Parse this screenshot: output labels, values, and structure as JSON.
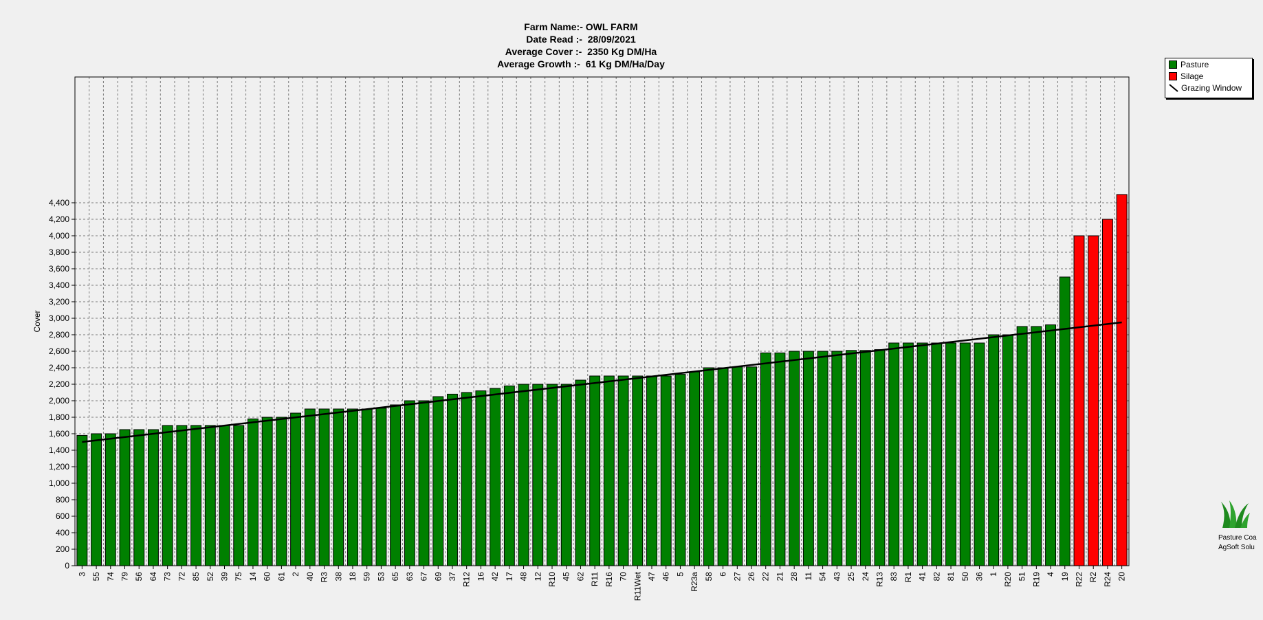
{
  "titles": {
    "farm": "Farm Name:- OWL FARM",
    "date": "Date Read :-  28/09/2021",
    "cover": "Average Cover :-  2350 Kg DM/Ha",
    "growth": "Average Growth :-  61 Kg DM/Ha/Day"
  },
  "legend": {
    "pasture": "Pasture",
    "silage": "Silage",
    "grazing": "Grazing Window"
  },
  "branding": {
    "line1": "Pasture Coa",
    "line2": "AgSoft Solu"
  },
  "colors": {
    "pasture": "#008000",
    "silage": "#ff0000",
    "background": "#f0f0f0",
    "grid": "#808080",
    "line": "#000000"
  },
  "chart_data": {
    "type": "bar",
    "ylabel": "Cover",
    "xlabel": "",
    "ylim": [
      0,
      4400
    ],
    "ytick_step": 200,
    "grid": true,
    "legend_position": "top-right",
    "categories": [
      "3",
      "55",
      "74",
      "79",
      "56",
      "64",
      "73",
      "72",
      "85",
      "52",
      "39",
      "75",
      "14",
      "60",
      "61",
      "2",
      "40",
      "R3",
      "38",
      "18",
      "59",
      "53",
      "65",
      "63",
      "67",
      "69",
      "37",
      "R12",
      "16",
      "42",
      "17",
      "48",
      "12",
      "R10",
      "45",
      "62",
      "R11",
      "R16",
      "70",
      "R11Wet",
      "47",
      "46",
      "5",
      "R23a",
      "58",
      "6",
      "27",
      "26",
      "22",
      "21",
      "28",
      "11",
      "54",
      "43",
      "25",
      "24",
      "R13",
      "83",
      "R1",
      "41",
      "82",
      "81",
      "50",
      "36",
      "1",
      "R20",
      "51",
      "R19",
      "4",
      "19",
      "R22",
      "R2",
      "R24",
      "20"
    ],
    "series": [
      {
        "name": "Pasture",
        "values": [
          1580,
          1600,
          1600,
          1650,
          1650,
          1650,
          1700,
          1700,
          1700,
          1700,
          1700,
          1700,
          1780,
          1800,
          1800,
          1850,
          1900,
          1900,
          1900,
          1900,
          1900,
          1910,
          1950,
          2000,
          2000,
          2050,
          2080,
          2100,
          2120,
          2150,
          2180,
          2200,
          2200,
          2200,
          2200,
          2250,
          2300,
          2300,
          2300,
          2300,
          2300,
          2300,
          2320,
          2350,
          2400,
          2400,
          2410,
          2410,
          2580,
          2580,
          2600,
          2600,
          2600,
          2600,
          2610,
          2610,
          2620,
          2700,
          2700,
          2700,
          2700,
          2700,
          2700,
          2700,
          2800,
          2800,
          2900,
          2900,
          2920,
          3500,
          null,
          null,
          null,
          null
        ]
      },
      {
        "name": "Silage",
        "values": [
          null,
          null,
          null,
          null,
          null,
          null,
          null,
          null,
          null,
          null,
          null,
          null,
          null,
          null,
          null,
          null,
          null,
          null,
          null,
          null,
          null,
          null,
          null,
          null,
          null,
          null,
          null,
          null,
          null,
          null,
          null,
          null,
          null,
          null,
          null,
          null,
          null,
          null,
          null,
          null,
          null,
          null,
          null,
          null,
          null,
          null,
          null,
          null,
          null,
          null,
          null,
          null,
          null,
          null,
          null,
          null,
          null,
          null,
          null,
          null,
          null,
          null,
          null,
          null,
          null,
          null,
          null,
          null,
          null,
          null,
          4000,
          4000,
          4200,
          4500
        ]
      }
    ],
    "grazing_window": {
      "name": "Grazing Window",
      "start": 1500,
      "end": 2950
    }
  }
}
